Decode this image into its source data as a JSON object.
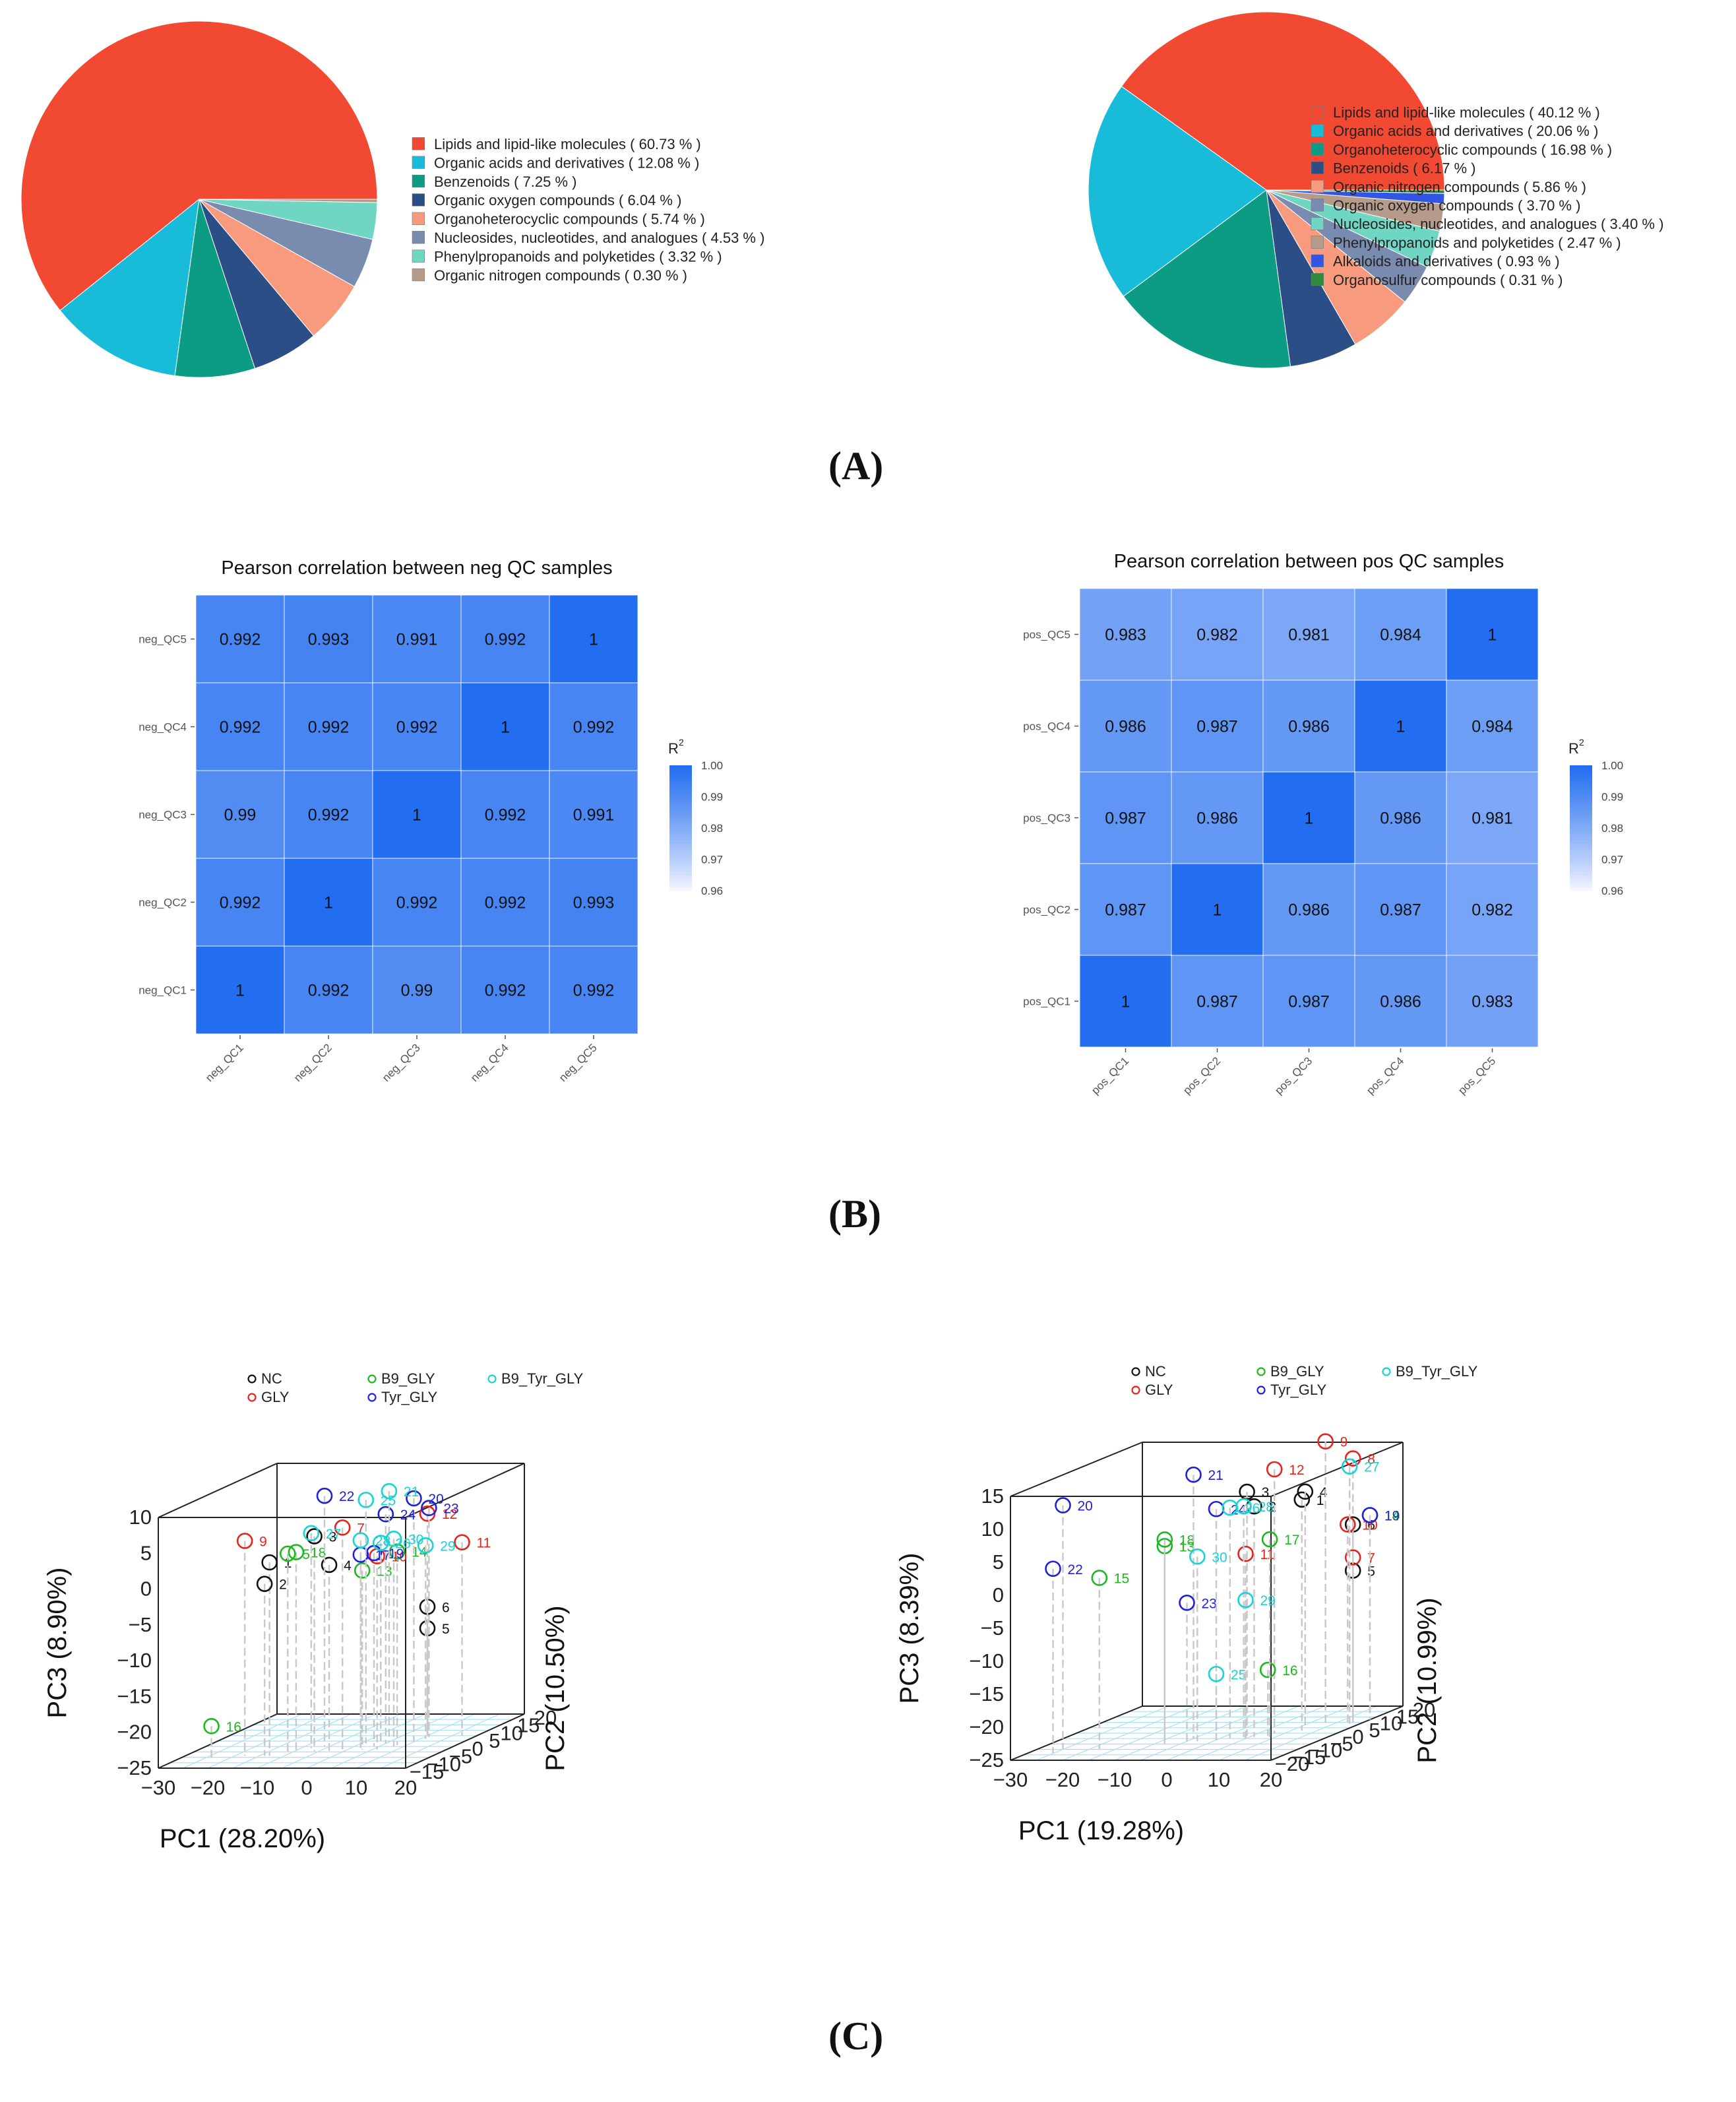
{
  "panel_labels": {
    "a": "(A)",
    "b": "(B)",
    "c": "(C)"
  },
  "chart_data": [
    {
      "id": "pie_neg",
      "type": "pie",
      "labels": [
        "Lipids and lipid-like molecules",
        "Organic acids and derivatives",
        "Benzenoids",
        "Organic oxygen compounds",
        "Organoheterocyclic compounds",
        "Nucleosides, nucleotides, and analogues",
        "Phenylpropanoids and polyketides",
        "Organic nitrogen compounds"
      ],
      "legend_text": [
        "Lipids and lipid-like molecules  ( 60.73 % )",
        "Organic acids and derivatives  ( 12.08 % )",
        "Benzenoids  ( 7.25 % )",
        "Organic oxygen compounds  ( 6.04 % )",
        "Organoheterocyclic compounds  ( 5.74 % )",
        "Nucleosides, nucleotides, and analogues  ( 4.53 % )",
        "Phenylpropanoids and polyketides  ( 3.32 % )",
        "Organic nitrogen compounds  ( 0.30 % )"
      ],
      "values": [
        60.73,
        12.08,
        7.25,
        6.04,
        5.74,
        4.53,
        3.32,
        0.3
      ],
      "colors": [
        "#f24a32",
        "#19bcd8",
        "#0b9c83",
        "#2b4e86",
        "#f79a7e",
        "#7a8bb0",
        "#6fd6c4",
        "#b69b8a"
      ]
    },
    {
      "id": "pie_pos",
      "type": "pie",
      "labels": [
        "Lipids and lipid-like molecules",
        "Organic acids and derivatives",
        "Organoheterocyclic compounds",
        "Benzenoids",
        "Organic nitrogen compounds",
        "Organic oxygen compounds",
        "Nucleosides, nucleotides, and analogues",
        "Phenylpropanoids and polyketides",
        "Alkaloids and derivatives",
        "Organosulfur compounds"
      ],
      "legend_text": [
        "Lipids and lipid-like molecules  ( 40.12 % )",
        "Organic acids and derivatives  ( 20.06 % )",
        "Organoheterocyclic compounds  ( 16.98 % )",
        "Benzenoids  ( 6.17 % )",
        "Organic nitrogen compounds  ( 5.86 % )",
        "Organic oxygen compounds  ( 3.70 % )",
        "Nucleosides, nucleotides, and analogues  ( 3.40 % )",
        "Phenylpropanoids and polyketides  ( 2.47 % )",
        "Alkaloids and derivatives  ( 0.93 % )",
        "Organosulfur compounds  ( 0.31 % )"
      ],
      "values": [
        40.12,
        20.06,
        16.98,
        6.17,
        5.86,
        3.7,
        3.4,
        2.47,
        0.93,
        0.31
      ],
      "colors": [
        "#f24a32",
        "#19bcd8",
        "#0b9c83",
        "#2b4e86",
        "#f79a7e",
        "#7a8bb0",
        "#6fd6c4",
        "#b69b8a",
        "#3355e6",
        "#2e8b3a"
      ]
    },
    {
      "id": "heat_neg",
      "type": "heatmap",
      "title": "Pearson correlation between neg QC samples",
      "rows": [
        "neg_QC5",
        "neg_QC4",
        "neg_QC3",
        "neg_QC2",
        "neg_QC1"
      ],
      "cols": [
        "neg_QC1",
        "neg_QC2",
        "neg_QC3",
        "neg_QC4",
        "neg_QC5"
      ],
      "values": [
        [
          "0.992",
          "0.993",
          "0.991",
          "0.992",
          "1"
        ],
        [
          "0.992",
          "0.992",
          "0.992",
          "1",
          "0.992"
        ],
        [
          "0.99",
          "0.992",
          "1",
          "0.992",
          "0.991"
        ],
        [
          "0.992",
          "1",
          "0.992",
          "0.992",
          "0.993"
        ],
        [
          "1",
          "0.992",
          "0.99",
          "0.992",
          "0.992"
        ]
      ],
      "colorbar": {
        "title": "R",
        "sup": "2",
        "ticks": [
          "1.00",
          "0.99",
          "0.98",
          "0.97",
          "0.96"
        ],
        "range": [
          0.96,
          1.0
        ]
      }
    },
    {
      "id": "heat_pos",
      "type": "heatmap",
      "title": "Pearson correlation between pos QC samples",
      "rows": [
        "pos_QC5",
        "pos_QC4",
        "pos_QC3",
        "pos_QC2",
        "pos_QC1"
      ],
      "cols": [
        "pos_QC1",
        "pos_QC2",
        "pos_QC3",
        "pos_QC4",
        "pos_QC5"
      ],
      "values": [
        [
          "0.983",
          "0.982",
          "0.981",
          "0.984",
          "1"
        ],
        [
          "0.986",
          "0.987",
          "0.986",
          "1",
          "0.984"
        ],
        [
          "0.987",
          "0.986",
          "1",
          "0.986",
          "0.981"
        ],
        [
          "0.987",
          "1",
          "0.986",
          "0.987",
          "0.982"
        ],
        [
          "1",
          "0.987",
          "0.987",
          "0.986",
          "0.983"
        ]
      ],
      "colorbar": {
        "title": "R",
        "sup": "2",
        "ticks": [
          "1.00",
          "0.99",
          "0.98",
          "0.97",
          "0.96"
        ],
        "range": [
          0.96,
          1.0
        ]
      }
    },
    {
      "id": "pca_neg",
      "type": "scatter",
      "legend": [
        {
          "name": "NC",
          "color": "#111111"
        },
        {
          "name": "GLY",
          "color": "#e8231d"
        },
        {
          "name": "B9_GLY",
          "color": "#1db81d"
        },
        {
          "name": "Tyr_GLY",
          "color": "#2020d8"
        },
        {
          "name": "B9_Tyr_GLY",
          "color": "#16d3d6"
        }
      ],
      "xlabel": "PC1 (28.20%)",
      "ylabel": "PC2 (10.50%)",
      "zlabel": "PC3 (8.90%)",
      "xticks": [
        "−30",
        "−20",
        "−10",
        "0",
        "10",
        "20"
      ],
      "yticks": [
        "−15",
        "−10",
        "−5",
        "0",
        "5",
        "10",
        "15",
        "20"
      ],
      "zticks": [
        "−25",
        "−20",
        "−15",
        "−10",
        "−5",
        "0",
        "5",
        "10"
      ],
      "points": [
        {
          "label": "1",
          "group": "NC",
          "x": -13,
          "y": -7,
          "z": 2
        },
        {
          "label": "2",
          "group": "NC",
          "x": -14,
          "y": -7,
          "z": -1
        },
        {
          "label": "3",
          "group": "NC",
          "x": -6,
          "y": -4,
          "z": 5
        },
        {
          "label": "4",
          "group": "NC",
          "x": -3,
          "y": -4,
          "z": 1
        },
        {
          "label": "5",
          "group": "NC",
          "x": 10,
          "y": 6,
          "z": -10
        },
        {
          "label": "6",
          "group": "NC",
          "x": 10,
          "y": 6,
          "z": -7
        },
        {
          "label": "7",
          "group": "GLY",
          "x": -1,
          "y": -3,
          "z": 6
        },
        {
          "label": "9",
          "group": "GLY",
          "x": -18,
          "y": -7,
          "z": 5
        },
        {
          "label": "10",
          "group": "GLY",
          "x": 6,
          "y": -3,
          "z": 2
        },
        {
          "label": "11",
          "group": "GLY",
          "x": 17,
          "y": 6,
          "z": 2
        },
        {
          "label": "12",
          "group": "GLY",
          "x": 10,
          "y": 6,
          "z": 6
        },
        {
          "label": "13",
          "group": "B9_GLY",
          "x": 3,
          "y": -3,
          "z": 0
        },
        {
          "label": "14",
          "group": "B9_GLY",
          "x": 8,
          "y": 0,
          "z": 2
        },
        {
          "label": "16",
          "group": "B9_GLY",
          "x": -22,
          "y": -11,
          "z": -20
        },
        {
          "label": "18",
          "group": "B9_GLY",
          "x": -9,
          "y": -5,
          "z": 3
        },
        {
          "label": "5",
          "group": "B9_GLY",
          "x": -10,
          "y": -6,
          "z": 3
        },
        {
          "label": "19",
          "group": "Tyr_GLY",
          "x": 4,
          "y": -1,
          "z": 2
        },
        {
          "label": "20",
          "group": "Tyr_GLY",
          "x": 10,
          "y": 2,
          "z": 9
        },
        {
          "label": "22",
          "group": "Tyr_GLY",
          "x": -6,
          "y": -1,
          "z": 10
        },
        {
          "label": "23",
          "group": "Tyr_GLY",
          "x": 11,
          "y": 5,
          "z": 7
        },
        {
          "label": "24",
          "group": "Tyr_GLY",
          "x": 5,
          "y": 1,
          "z": 7
        },
        {
          "label": "17",
          "group": "Tyr_GLY",
          "x": 2,
          "y": -2,
          "z": 2
        },
        {
          "label": "21",
          "group": "B9_Tyr_GLY",
          "x": 5,
          "y": 2,
          "z": 10
        },
        {
          "label": "25",
          "group": "B9_Tyr_GLY",
          "x": 1,
          "y": 1,
          "z": 9
        },
        {
          "label": "26",
          "group": "B9_Tyr_GLY",
          "x": 4,
          "y": 1,
          "z": 3
        },
        {
          "label": "27",
          "group": "B9_Tyr_GLY",
          "x": -8,
          "y": -2,
          "z": 5
        },
        {
          "label": "28",
          "group": "B9_Tyr_GLY",
          "x": 2,
          "y": -2,
          "z": 4
        },
        {
          "label": "29",
          "group": "B9_Tyr_GLY",
          "x": 11,
          "y": 4,
          "z": 2
        },
        {
          "label": "30",
          "group": "B9_Tyr_GLY",
          "x": 8,
          "y": -1,
          "z": 4
        }
      ]
    },
    {
      "id": "pca_pos",
      "type": "scatter",
      "legend": [
        {
          "name": "NC",
          "color": "#111111"
        },
        {
          "name": "GLY",
          "color": "#e8231d"
        },
        {
          "name": "B9_GLY",
          "color": "#1db81d"
        },
        {
          "name": "Tyr_GLY",
          "color": "#2020d8"
        },
        {
          "name": "B9_Tyr_GLY",
          "color": "#16d3d6"
        }
      ],
      "xlabel": "PC1 (19.28%)",
      "ylabel": "PC2 (10.99%)",
      "zlabel": "PC3 (8.39%)",
      "xticks": [
        "−30",
        "−20",
        "−10",
        "0",
        "10",
        "20"
      ],
      "yticks": [
        "−20",
        "−15",
        "−10",
        "−5",
        "0",
        "5",
        "10",
        "15",
        "20"
      ],
      "zticks": [
        "−25",
        "−20",
        "−15",
        "−10",
        "−5",
        "0",
        "5",
        "10",
        "15"
      ],
      "points": [
        {
          "label": "1",
          "group": "NC",
          "x": 12,
          "y": 2,
          "z": 10
        },
        {
          "label": "2",
          "group": "NC",
          "x": 6,
          "y": -3,
          "z": 10
        },
        {
          "label": "3",
          "group": "NC",
          "x": 4,
          "y": -2,
          "z": 12
        },
        {
          "label": "4",
          "group": "NC",
          "x": 12,
          "y": 3,
          "z": 11
        },
        {
          "label": "5",
          "group": "NC",
          "x": 18,
          "y": 8,
          "z": -2
        },
        {
          "label": "6",
          "group": "NC",
          "x": 18,
          "y": 8,
          "z": 5
        },
        {
          "label": "7",
          "group": "GLY",
          "x": 18,
          "y": 8,
          "z": 0
        },
        {
          "label": "8",
          "group": "GLY",
          "x": 18,
          "y": 8,
          "z": 15
        },
        {
          "label": "9",
          "group": "GLY",
          "x": 14,
          "y": 6,
          "z": 18
        },
        {
          "label": "10",
          "group": "GLY",
          "x": 17,
          "y": 8,
          "z": 5
        },
        {
          "label": "11",
          "group": "GLY",
          "x": 5,
          "y": -4,
          "z": 3
        },
        {
          "label": "12",
          "group": "GLY",
          "x": 8,
          "y": 0,
          "z": 15
        },
        {
          "label": "13",
          "group": "B9_GLY",
          "x": -8,
          "y": -8,
          "z": 5
        },
        {
          "label": "14",
          "group": "B9_GLY",
          "x": 20,
          "y": 10,
          "z": 6
        },
        {
          "label": "15",
          "group": "B9_GLY",
          "x": -18,
          "y": -12,
          "z": 1
        },
        {
          "label": "16",
          "group": "B9_GLY",
          "x": 8,
          "y": -2,
          "z": -15
        },
        {
          "label": "17",
          "group": "B9_GLY",
          "x": 9,
          "y": -3,
          "z": 5
        },
        {
          "label": "18",
          "group": "B9_GLY",
          "x": -8,
          "y": -8,
          "z": 6
        },
        {
          "label": "19",
          "group": "Tyr_GLY",
          "x": 20,
          "y": 10,
          "z": 6
        },
        {
          "label": "20",
          "group": "Tyr_GLY",
          "x": -25,
          "y": -12,
          "z": 12
        },
        {
          "label": "21",
          "group": "Tyr_GLY",
          "x": -5,
          "y": -4,
          "z": 15
        },
        {
          "label": "22",
          "group": "Tyr_GLY",
          "x": -25,
          "y": -15,
          "z": 3
        },
        {
          "label": "23",
          "group": "Tyr_GLY",
          "x": -5,
          "y": -6,
          "z": -4
        },
        {
          "label": "24",
          "group": "Tyr_GLY",
          "x": 0,
          "y": -5,
          "z": 10
        },
        {
          "label": "25",
          "group": "B9_Tyr_GLY",
          "x": 0,
          "y": -5,
          "z": -15
        },
        {
          "label": "26",
          "group": "B9_Tyr_GLY",
          "x": 2,
          "y": -4,
          "z": 10
        },
        {
          "label": "27",
          "group": "B9_Tyr_GLY",
          "x": 18,
          "y": 7,
          "z": 14
        },
        {
          "label": "28",
          "group": "B9_Tyr_GLY",
          "x": 4,
          "y": -3,
          "z": 10
        },
        {
          "label": "29",
          "group": "B9_Tyr_GLY",
          "x": 5,
          "y": -4,
          "z": -4
        },
        {
          "label": "30",
          "group": "B9_Tyr_GLY",
          "x": -3,
          "y": -6,
          "z": 3
        }
      ]
    }
  ]
}
